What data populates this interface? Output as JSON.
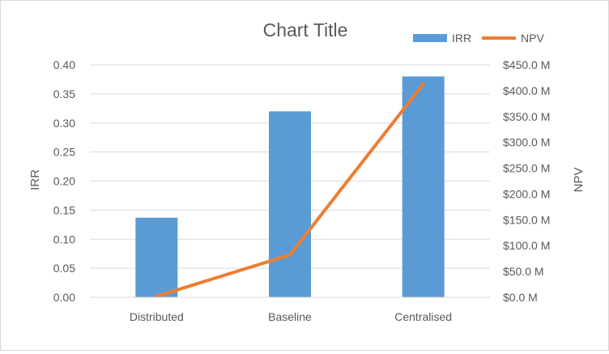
{
  "chart_data": {
    "type": "bar",
    "title": "Chart Title",
    "categories": [
      "Distributed",
      "Baseline",
      "Centralised"
    ],
    "series": [
      {
        "name": "IRR",
        "type": "bar",
        "axis": "left",
        "values": [
          0.137,
          0.32,
          0.38
        ],
        "color": "#5b9bd5"
      },
      {
        "name": "NPV",
        "type": "line",
        "axis": "right",
        "values": [
          2,
          82,
          413
        ],
        "color": "#ed7d31"
      }
    ],
    "ylabel": "IRR",
    "y2label": "NPV",
    "ylim": [
      0,
      0.4
    ],
    "y2lim": [
      0,
      450
    ],
    "yticks": [
      "0.00",
      "0.05",
      "0.10",
      "0.15",
      "0.20",
      "0.25",
      "0.30",
      "0.35",
      "0.40"
    ],
    "y2ticks": [
      "$0.0 M",
      "$50.0 M",
      "$100.0 M",
      "$150.0 M",
      "$200.0 M",
      "$250.0 M",
      "$300.0 M",
      "$350.0 M",
      "$400.0 M",
      "$450.0 M"
    ],
    "grid": true,
    "legend_position": "top-right"
  }
}
